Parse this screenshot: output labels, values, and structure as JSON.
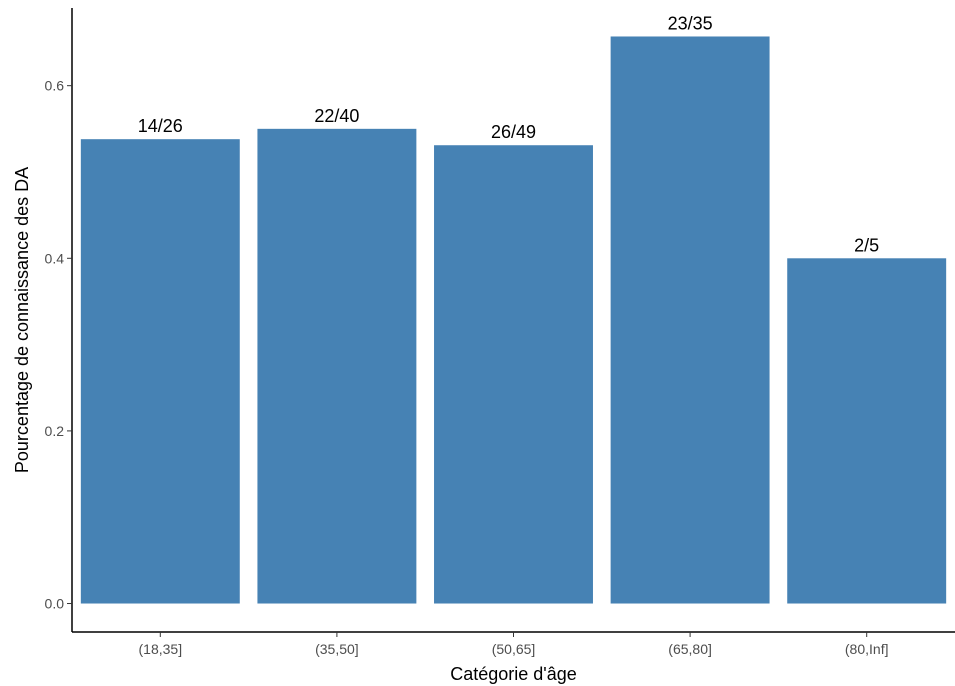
{
  "chart_data": {
    "type": "bar",
    "categories": [
      "(18,35]",
      "(35,50]",
      "(50,65]",
      "(65,80]",
      "(80,Inf]"
    ],
    "values": [
      0.538,
      0.55,
      0.531,
      0.657,
      0.4
    ],
    "data_labels": [
      "14/26",
      "22/40",
      "26/49",
      "23/35",
      "2/5"
    ],
    "xlabel": "Catégorie d'âge",
    "ylabel": "Pourcentage de connaissance des DA",
    "ylim": [
      -0.033,
      0.69
    ],
    "yticks": [
      0.0,
      0.2,
      0.4,
      0.6
    ],
    "ytick_labels": [
      "0.0",
      "0.2",
      "0.4",
      "0.6"
    ],
    "grid": false,
    "legend": "none",
    "bar_color": "#4682b4"
  }
}
